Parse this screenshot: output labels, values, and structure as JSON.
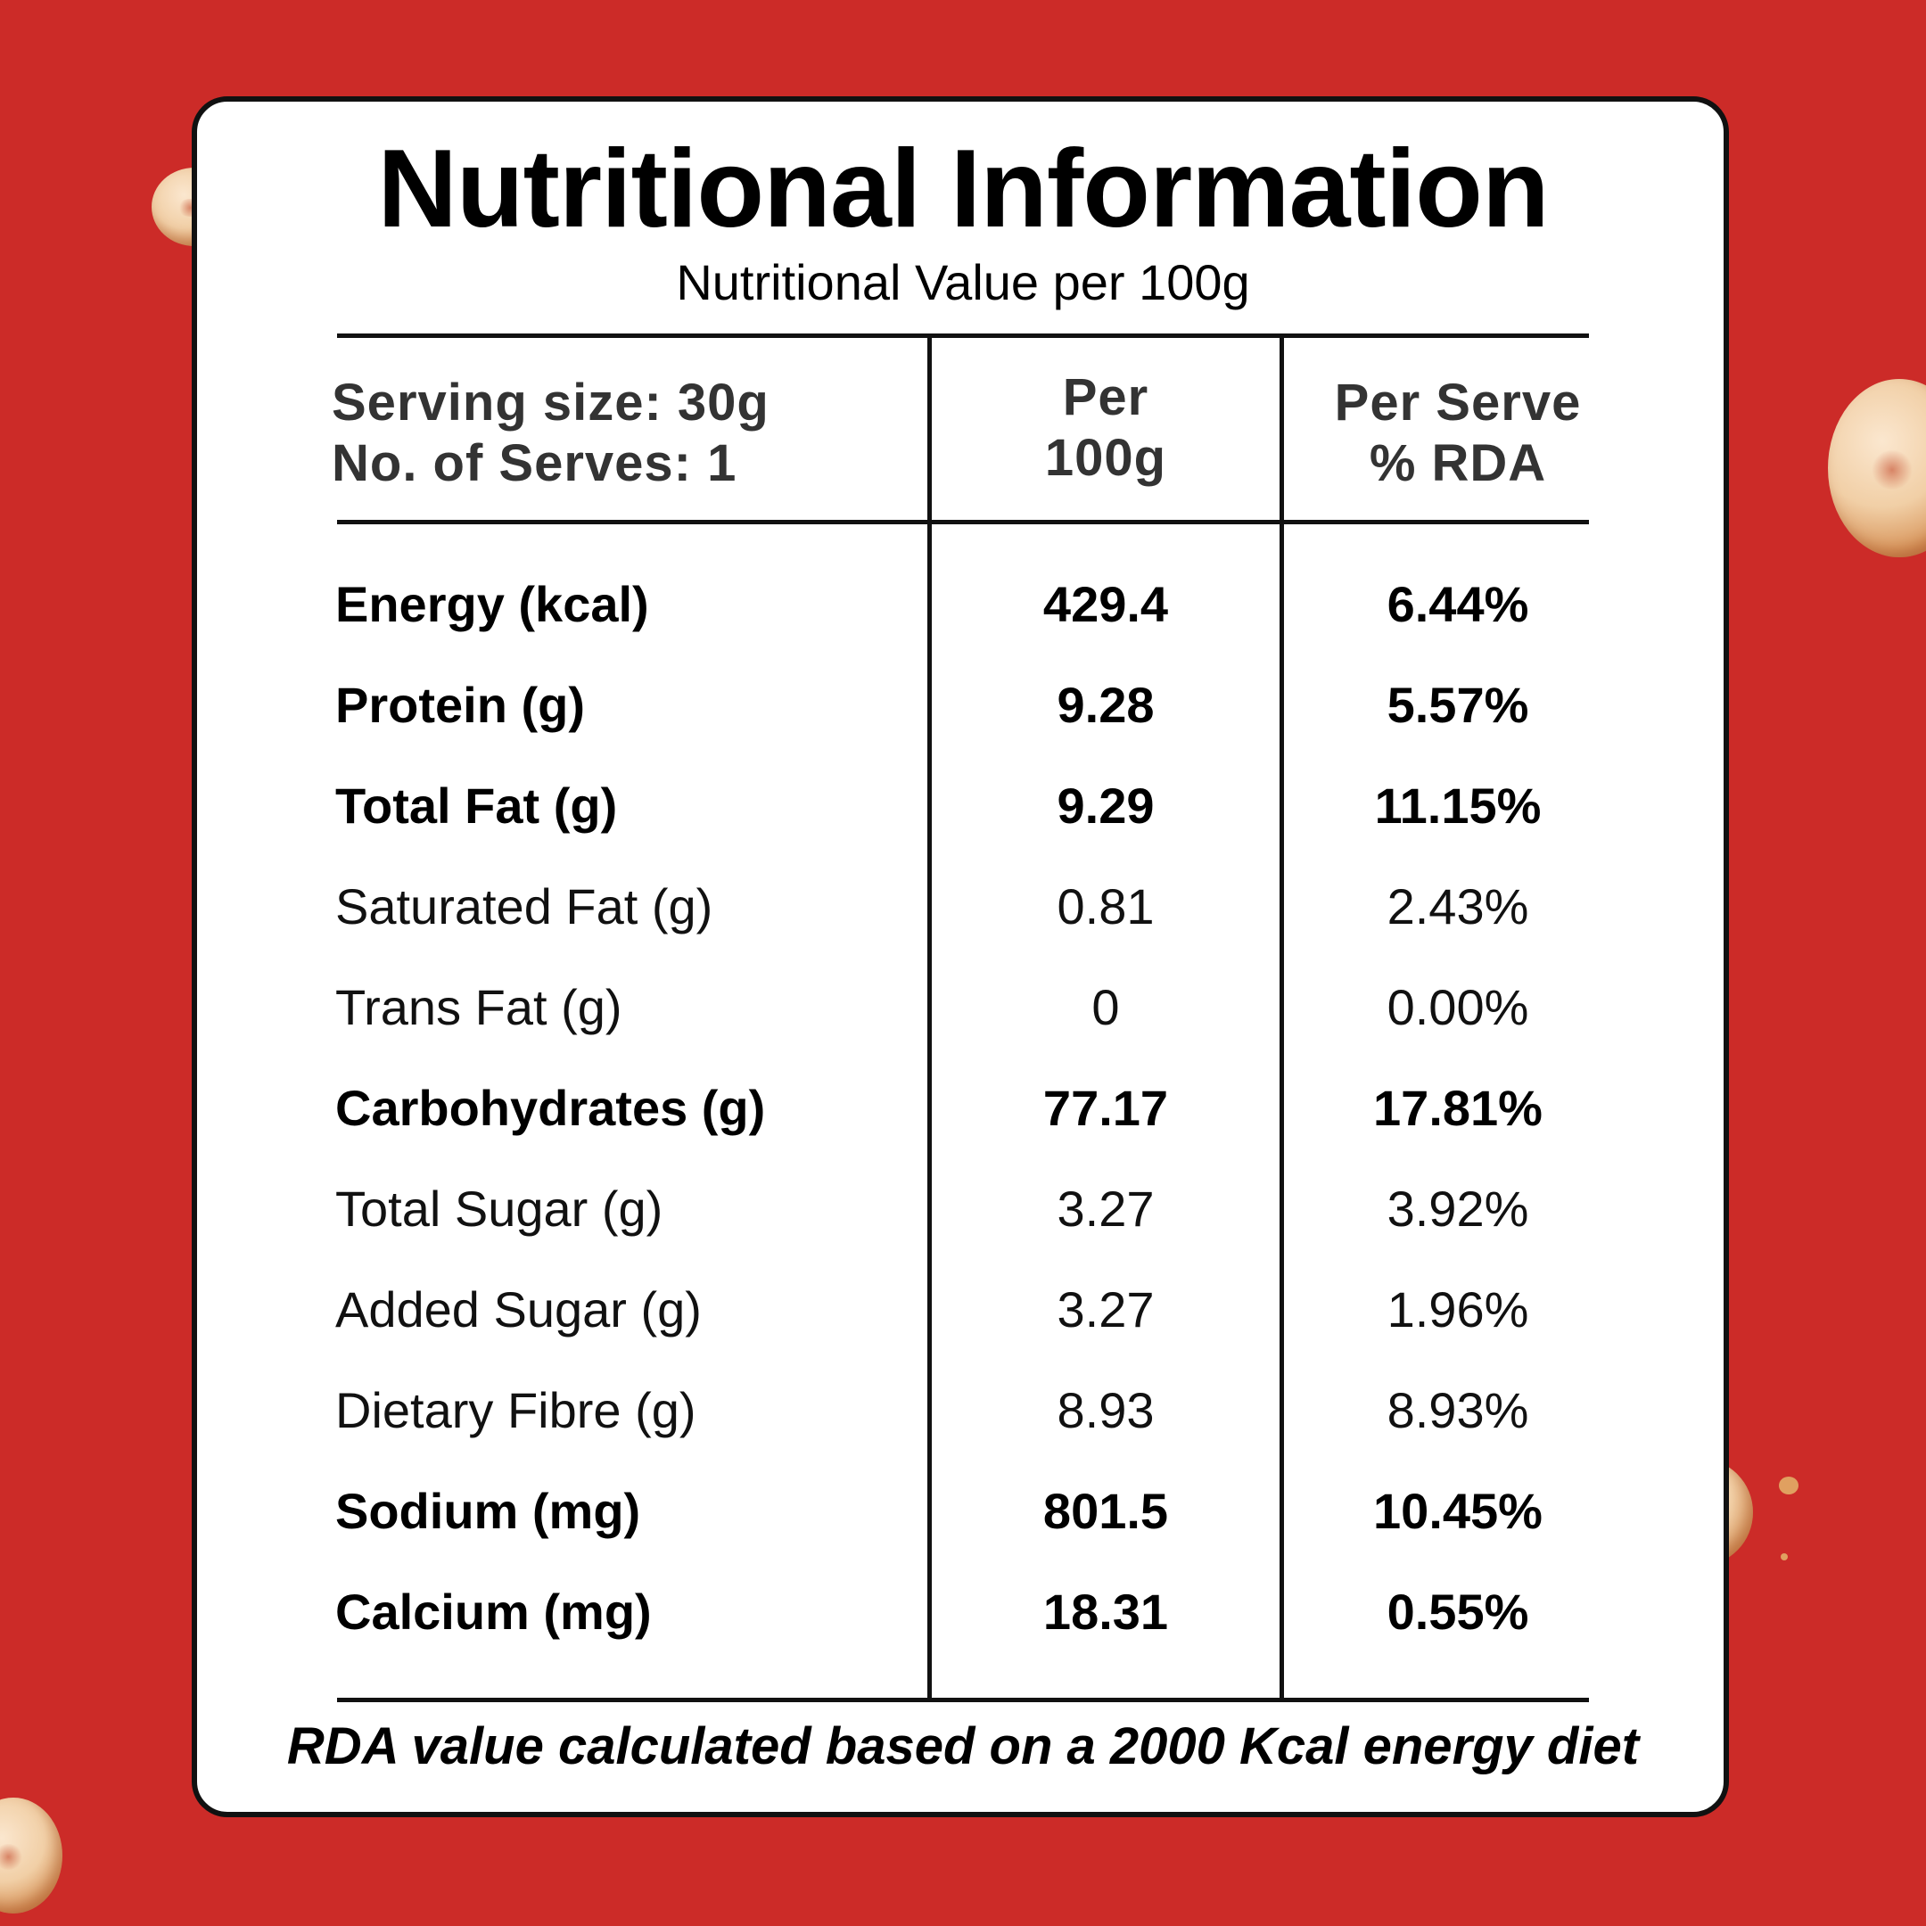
{
  "title": "Nutritional Information",
  "subtitle": "Nutritional Value per 100g",
  "header": {
    "serving_size": "Serving size: 30g",
    "num_serves": "No. of Serves: 1",
    "col2_line1": "Per",
    "col2_line2": "100g",
    "col3_line1": "Per Serve",
    "col3_line2": "% RDA"
  },
  "rows": [
    {
      "label": "Energy (kcal)",
      "per100g": "429.4",
      "rda": "6.44%",
      "bold": true
    },
    {
      "label": "Protein (g)",
      "per100g": "9.28",
      "rda": "5.57%",
      "bold": true
    },
    {
      "label": "Total Fat (g)",
      "per100g": "9.29",
      "rda": "11.15%",
      "bold": true
    },
    {
      "label": "Saturated Fat (g)",
      "per100g": "0.81",
      "rda": "2.43%",
      "bold": false
    },
    {
      "label": "Trans Fat (g)",
      "per100g": "0",
      "rda": "0.00%",
      "bold": false
    },
    {
      "label": "Carbohydrates (g)",
      "per100g": "77.17",
      "rda": "17.81%",
      "bold": true
    },
    {
      "label": "Total Sugar (g)",
      "per100g": "3.27",
      "rda": "3.92%",
      "bold": false
    },
    {
      "label": "Added Sugar (g)",
      "per100g": "3.27",
      "rda": "1.96%",
      "bold": false
    },
    {
      "label": "Dietary Fibre (g)",
      "per100g": "8.93",
      "rda": "8.93%",
      "bold": false
    },
    {
      "label": "Sodium (mg)",
      "per100g": "801.5",
      "rda": "10.45%",
      "bold": true
    },
    {
      "label": "Calcium (mg)",
      "per100g": "18.31",
      "rda": "0.55%",
      "bold": true
    }
  ],
  "footnote": "RDA value calculated based on a 2000 Kcal energy diet",
  "colors": {
    "background": "#cc2b28",
    "card": "#ffffff",
    "text": "#000000"
  }
}
